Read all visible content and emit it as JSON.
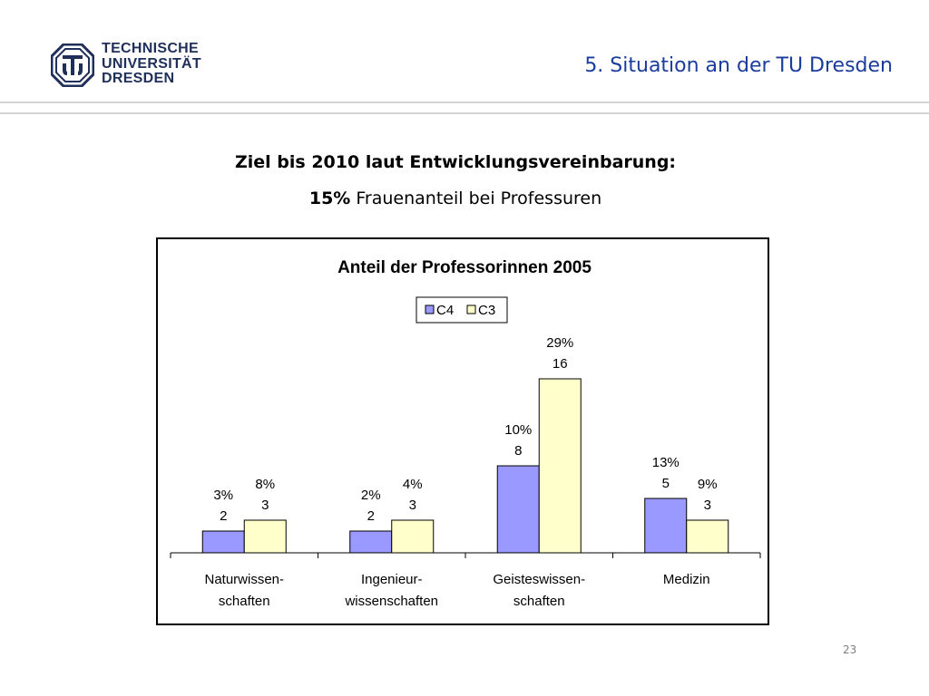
{
  "header": {
    "logo_lines": [
      "TECHNISCHE",
      "UNIVERSITÄT",
      "DRESDEN"
    ],
    "title": "5. Situation an der TU Dresden"
  },
  "content": {
    "heading": "Ziel bis 2010 laut Entwicklungsvereinbarung:",
    "target_value": "15%",
    "target_text": "Frauenanteil bei Professuren"
  },
  "colors": {
    "header_title": "#1a3c9c",
    "logo": "#1f2f5a",
    "rule": "#d4d4d4"
  },
  "chart_data": {
    "type": "bar",
    "title": "Anteil der Professorinnen 2005",
    "categories": [
      [
        "Naturwissen-",
        "schaften"
      ],
      [
        "Ingenieur-",
        "wissenschaften"
      ],
      [
        "Geisteswissen-",
        "schaften"
      ],
      [
        "Medizin"
      ]
    ],
    "series": [
      {
        "name": "C4",
        "color": "#9999ff",
        "values": [
          2,
          2,
          8,
          5
        ],
        "percent_labels": [
          "3%",
          "2%",
          "10%",
          "13%"
        ]
      },
      {
        "name": "C3",
        "color": "#ffffcc",
        "values": [
          3,
          3,
          16,
          3
        ],
        "percent_labels": [
          "8%",
          "4%",
          "29%",
          "9%"
        ]
      }
    ],
    "legend_position": "top-center",
    "grid": false,
    "y_axis_visible": false
  },
  "footer": {
    "page_number": "23"
  }
}
